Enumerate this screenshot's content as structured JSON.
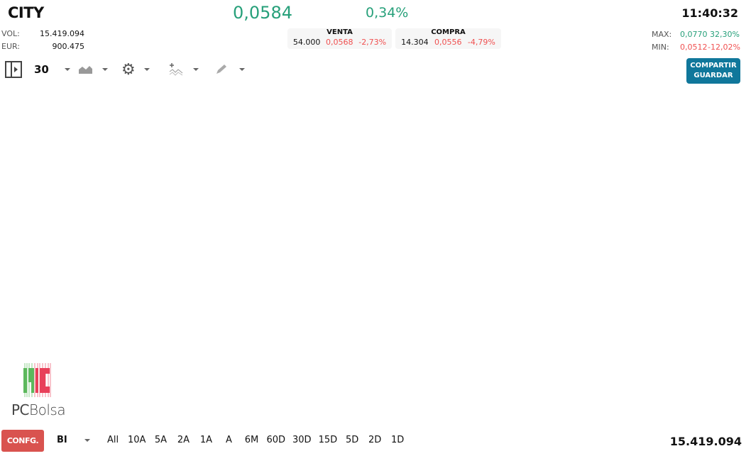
{
  "header": {
    "symbol": "CITY",
    "price": "0,0584",
    "change_pct": "0,34%",
    "time": "11:40:32"
  },
  "stats": {
    "vol_label": "VOL:",
    "vol": "15.419.094",
    "eur_label": "EUR:",
    "eur": "900.475",
    "max_label": "MAX:",
    "max": "0,0770",
    "max_pct": "32,30%",
    "min_label": "MIN:",
    "min": "0,0512",
    "min_pct": "-12,02%"
  },
  "venta": {
    "title": "VENTA",
    "qty": "54.000",
    "price": "0,0568",
    "pct": "-2,73%"
  },
  "compra": {
    "title": "COMPRA",
    "qty": "14.304",
    "price": "0,0556",
    "pct": "-4,79%"
  },
  "toolbar": {
    "period": "30",
    "share_label": "COMPARTIR",
    "save_label": "GUARDAR"
  },
  "logo": {
    "text_pc": "PC",
    "text_bolsa": "Bolsa"
  },
  "footer": {
    "config_label": "CONFG.",
    "mode": "BI",
    "ranges": [
      "All",
      "10A",
      "5A",
      "2A",
      "1A",
      "A",
      "6M",
      "60D",
      "30D",
      "15D",
      "5D",
      "2D",
      "1D"
    ],
    "total": "15.419.094"
  },
  "colors": {
    "up": "#27a07a",
    "down": "#f05050",
    "share_button": "#10779b",
    "config_button": "#d9534f"
  }
}
